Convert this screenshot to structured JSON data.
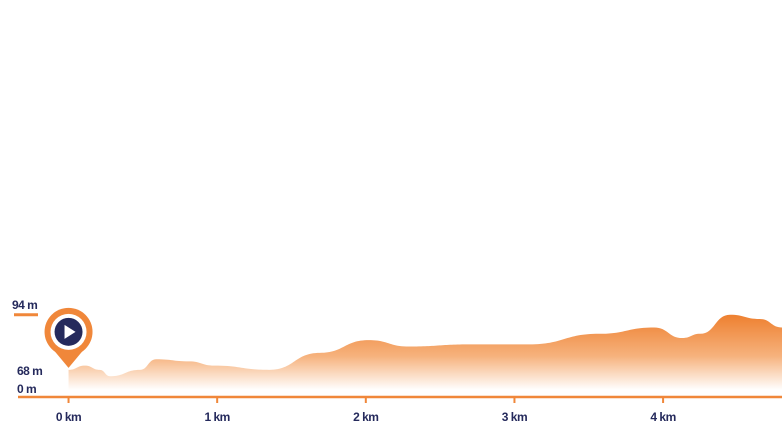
{
  "chart_data": {
    "type": "area",
    "x": [
      0,
      0.11,
      0.21,
      0.28,
      0.48,
      0.59,
      0.81,
      0.98,
      1.35,
      1.69,
      2.02,
      2.29,
      2.7,
      3.1,
      3.57,
      3.94,
      4.13,
      4.25,
      4.45,
      4.65,
      4.8
    ],
    "y": [
      68,
      70,
      68,
      65,
      68,
      73,
      72,
      70,
      68,
      76,
      82,
      79,
      80,
      80,
      85,
      88,
      83,
      85,
      94,
      92,
      88
    ],
    "color": "#f0873a",
    "xlim": [
      -0.34,
      4.8
    ],
    "ylim": [
      58.5,
      100
    ],
    "xticks": [
      {
        "value": 0,
        "label": "0 km"
      },
      {
        "value": 1,
        "label": "1 km"
      },
      {
        "value": 2,
        "label": "2 km"
      },
      {
        "value": 3,
        "label": "3 km"
      },
      {
        "value": 4,
        "label": "4 km"
      }
    ],
    "yticks": [
      {
        "value": 68,
        "label": "68 m"
      },
      {
        "value": 94,
        "label": "94 m"
      }
    ],
    "baseline_label": "0 m"
  }
}
